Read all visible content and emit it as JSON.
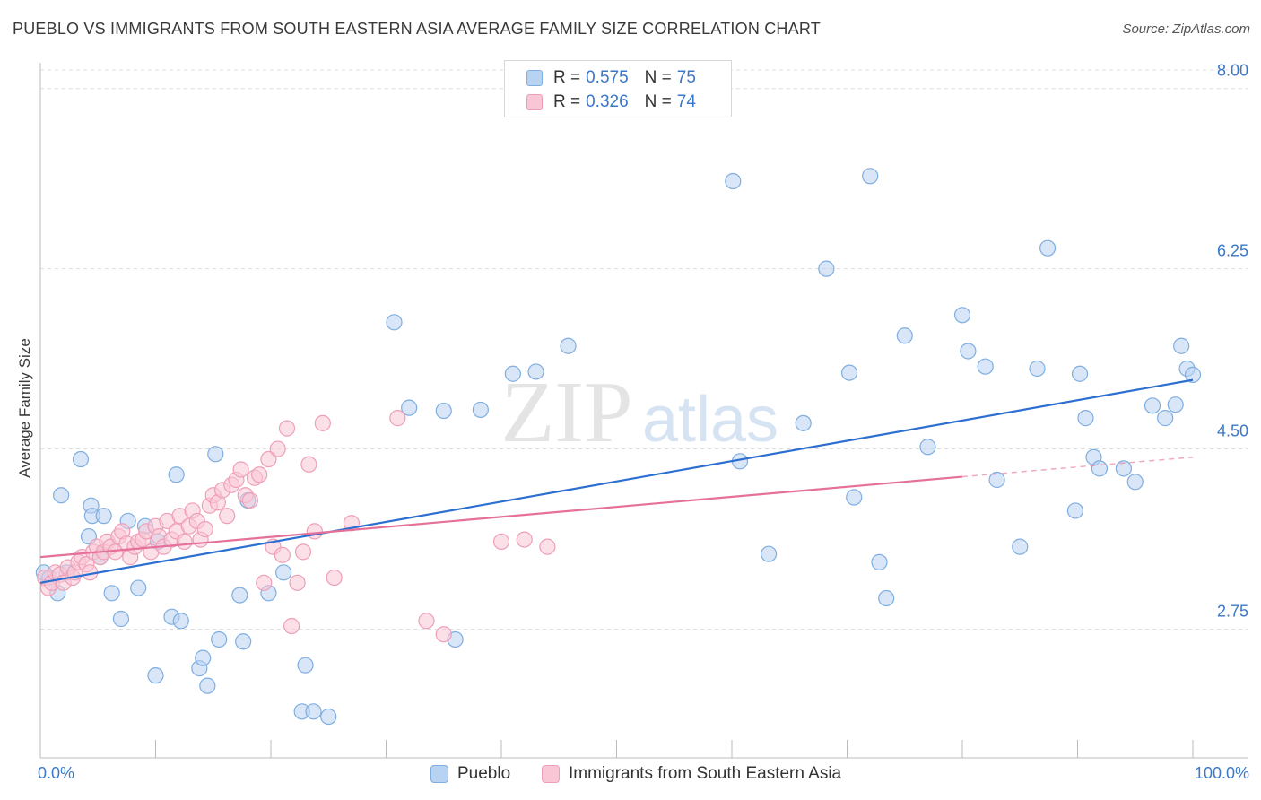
{
  "title": "PUEBLO VS IMMIGRANTS FROM SOUTH EASTERN ASIA AVERAGE FAMILY SIZE CORRELATION CHART",
  "source": "Source: ZipAtlas.com",
  "watermark": {
    "zip": "ZIP",
    "atlas": "atlas"
  },
  "legend": {
    "pueblo": {
      "r_label": "R = ",
      "r_value": "0.575",
      "n_label": "N = ",
      "n_value": "75"
    },
    "immigrants": {
      "r_label": "R = ",
      "r_value": "0.326",
      "n_label": "N = ",
      "n_value": "74"
    }
  },
  "bottom_legend": {
    "pueblo": "Pueblo",
    "immigrants": "Immigrants from South Eastern Asia"
  },
  "x_axis": {
    "min_label": "0.0%",
    "max_label": "100.0%"
  },
  "colors": {
    "blue_fill": "#b8d2f2",
    "blue_stroke": "#7faee0",
    "blue_line": "#2c6fd1",
    "pink_fill": "#f9c6d6",
    "pink_stroke": "#ee9fb8",
    "pink_line": "#e5719a",
    "tick_text": "#3a78c9",
    "grid": "#dcdcdc"
  },
  "chart_data": {
    "type": "scatter",
    "title": "PUEBLO VS IMMIGRANTS FROM SOUTH EASTERN ASIA AVERAGE FAMILY SIZE CORRELATION CHART",
    "xlabel": "",
    "ylabel": "Average Family Size",
    "xlim": [
      0,
      100
    ],
    "ylim": [
      1.5,
      8.25
    ],
    "y_ticks": [
      {
        "value": 2.75,
        "label": "2.75"
      },
      {
        "value": 4.5,
        "label": "4.50"
      },
      {
        "value": 6.25,
        "label": "6.25"
      },
      {
        "value": 8.0,
        "label": "8.00"
      }
    ],
    "grid": true,
    "legend_position": "top-center",
    "series": [
      {
        "name": "Pueblo",
        "color": "#7faee0",
        "r": 0.575,
        "n": 75,
        "trend": {
          "x": [
            0,
            100
          ],
          "y": [
            3.2,
            5.17
          ]
        },
        "x": [
          0.3,
          0.8,
          1.5,
          1.8,
          2.3,
          3.5,
          4.2,
          4.4,
          4.5,
          5.2,
          5.5,
          6.2,
          7.0,
          7.6,
          8.5,
          9.1,
          10.0,
          10.2,
          11.4,
          11.8,
          12.2,
          13.8,
          14.1,
          14.5,
          15.2,
          15.5,
          17.3,
          17.6,
          18.0,
          19.8,
          21.1,
          22.7,
          23.0,
          23.7,
          25.0,
          30.7,
          32.0,
          35.0,
          36.0,
          38.2,
          41.0,
          43.0,
          45.8,
          60.1,
          60.7,
          63.2,
          66.2,
          68.2,
          70.2,
          70.6,
          72.0,
          72.8,
          73.4,
          75.0,
          77.0,
          80.0,
          80.5,
          82.0,
          83.0,
          85.0,
          86.5,
          87.4,
          89.8,
          90.2,
          90.7,
          91.4,
          91.9,
          94.0,
          95.0,
          96.5,
          97.6,
          98.5,
          99.0,
          99.5,
          100.0
        ],
        "y": [
          3.3,
          3.25,
          3.1,
          4.05,
          3.3,
          4.4,
          3.65,
          3.95,
          3.85,
          3.45,
          3.85,
          3.1,
          2.85,
          3.8,
          3.15,
          3.75,
          2.3,
          3.6,
          2.87,
          4.25,
          2.83,
          2.37,
          2.47,
          2.2,
          4.45,
          2.65,
          3.08,
          2.63,
          4.0,
          3.1,
          3.3,
          1.95,
          2.4,
          1.95,
          1.9,
          5.73,
          4.9,
          4.87,
          2.65,
          4.88,
          5.23,
          5.25,
          5.5,
          7.1,
          4.38,
          3.48,
          4.75,
          6.25,
          5.24,
          4.03,
          7.15,
          3.4,
          3.05,
          5.6,
          4.52,
          5.8,
          5.45,
          5.3,
          4.2,
          3.55,
          5.28,
          6.45,
          3.9,
          5.23,
          4.8,
          4.42,
          4.31,
          4.31,
          4.18,
          4.92,
          4.8,
          4.93,
          5.5,
          5.28,
          5.22
        ]
      },
      {
        "name": "Immigrants from South Eastern Asia",
        "color": "#ee9fb8",
        "r": 0.326,
        "n": 74,
        "trend": {
          "x": [
            0,
            80
          ],
          "y": [
            3.45,
            4.23
          ]
        },
        "trend_dashed": {
          "x": [
            80,
            100
          ],
          "y": [
            4.23,
            4.42
          ]
        },
        "x": [
          0.4,
          0.7,
          1.0,
          1.3,
          1.7,
          2.0,
          2.4,
          2.8,
          3.0,
          3.3,
          3.6,
          4.0,
          4.3,
          4.6,
          4.9,
          5.2,
          5.5,
          5.8,
          6.1,
          6.5,
          6.8,
          7.1,
          7.5,
          7.8,
          8.2,
          8.5,
          8.9,
          9.2,
          9.6,
          10.0,
          10.3,
          10.7,
          11.0,
          11.4,
          11.8,
          12.1,
          12.5,
          12.9,
          13.2,
          13.6,
          13.9,
          14.3,
          14.7,
          15.0,
          15.4,
          15.8,
          16.2,
          16.6,
          17.0,
          17.4,
          17.8,
          18.2,
          18.6,
          19.0,
          19.4,
          19.8,
          20.2,
          20.6,
          21.0,
          21.4,
          21.8,
          22.3,
          22.8,
          23.3,
          23.8,
          24.5,
          25.5,
          27.0,
          31.0,
          33.5,
          35.0,
          40.0,
          42.0,
          44.0
        ],
        "y": [
          3.25,
          3.15,
          3.2,
          3.3,
          3.28,
          3.2,
          3.35,
          3.25,
          3.3,
          3.4,
          3.45,
          3.38,
          3.3,
          3.5,
          3.55,
          3.45,
          3.5,
          3.6,
          3.55,
          3.5,
          3.65,
          3.7,
          3.58,
          3.45,
          3.55,
          3.6,
          3.62,
          3.7,
          3.5,
          3.75,
          3.65,
          3.55,
          3.8,
          3.62,
          3.7,
          3.85,
          3.6,
          3.75,
          3.9,
          3.8,
          3.62,
          3.72,
          3.95,
          4.05,
          3.98,
          4.1,
          3.85,
          4.15,
          4.2,
          4.3,
          4.05,
          4.0,
          4.22,
          4.25,
          3.2,
          4.4,
          3.55,
          4.5,
          3.47,
          4.7,
          2.78,
          3.2,
          3.5,
          4.35,
          3.7,
          4.75,
          3.25,
          3.78,
          4.8,
          2.83,
          2.7,
          3.6,
          3.62,
          3.55
        ]
      }
    ]
  }
}
